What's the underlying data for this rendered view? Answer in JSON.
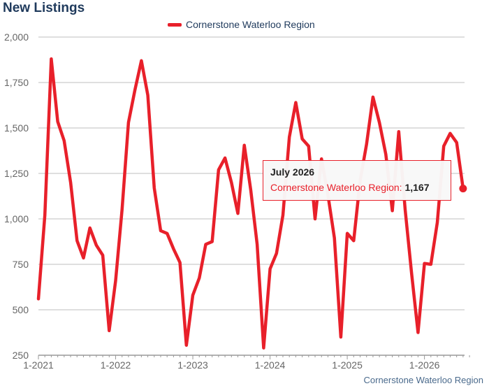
{
  "chart_data": {
    "type": "line",
    "title": "New Listings",
    "x_tick_labels": [
      "1-2021",
      "1-2022",
      "1-2023",
      "1-2024",
      "1-2025",
      "1-2026"
    ],
    "y_ticks": [
      250,
      500,
      750,
      1000,
      1250,
      1500,
      1750,
      2000
    ],
    "y_tick_labels": [
      "250",
      "500",
      "750",
      "1,000",
      "1,250",
      "1,500",
      "1,750",
      "2,000"
    ],
    "ylim": [
      250,
      2000
    ],
    "start": "2021-01",
    "grid": true,
    "legend_position": "top-center",
    "series": [
      {
        "name": "Cornerstone Waterloo Region",
        "color": "#e8202a",
        "values": [
          560,
          1020,
          1880,
          1535,
          1430,
          1200,
          880,
          785,
          950,
          855,
          800,
          385,
          660,
          1050,
          1530,
          1710,
          1870,
          1680,
          1170,
          935,
          920,
          835,
          760,
          305,
          580,
          675,
          860,
          875,
          1270,
          1335,
          1200,
          1030,
          1405,
          1160,
          860,
          290,
          725,
          810,
          1020,
          1450,
          1640,
          1440,
          1400,
          1000,
          1330,
          1130,
          895,
          350,
          920,
          880,
          1210,
          1410,
          1670,
          1530,
          1355,
          1045,
          1480,
          1050,
          700,
          375,
          755,
          750,
          980,
          1400,
          1470,
          1420,
          1167
        ]
      }
    ]
  },
  "tooltip": {
    "title": "July 2026",
    "series_label": "Cornerstone Waterloo Region:",
    "value": "1,167"
  },
  "credit": "Cornerstone Waterloo Region"
}
